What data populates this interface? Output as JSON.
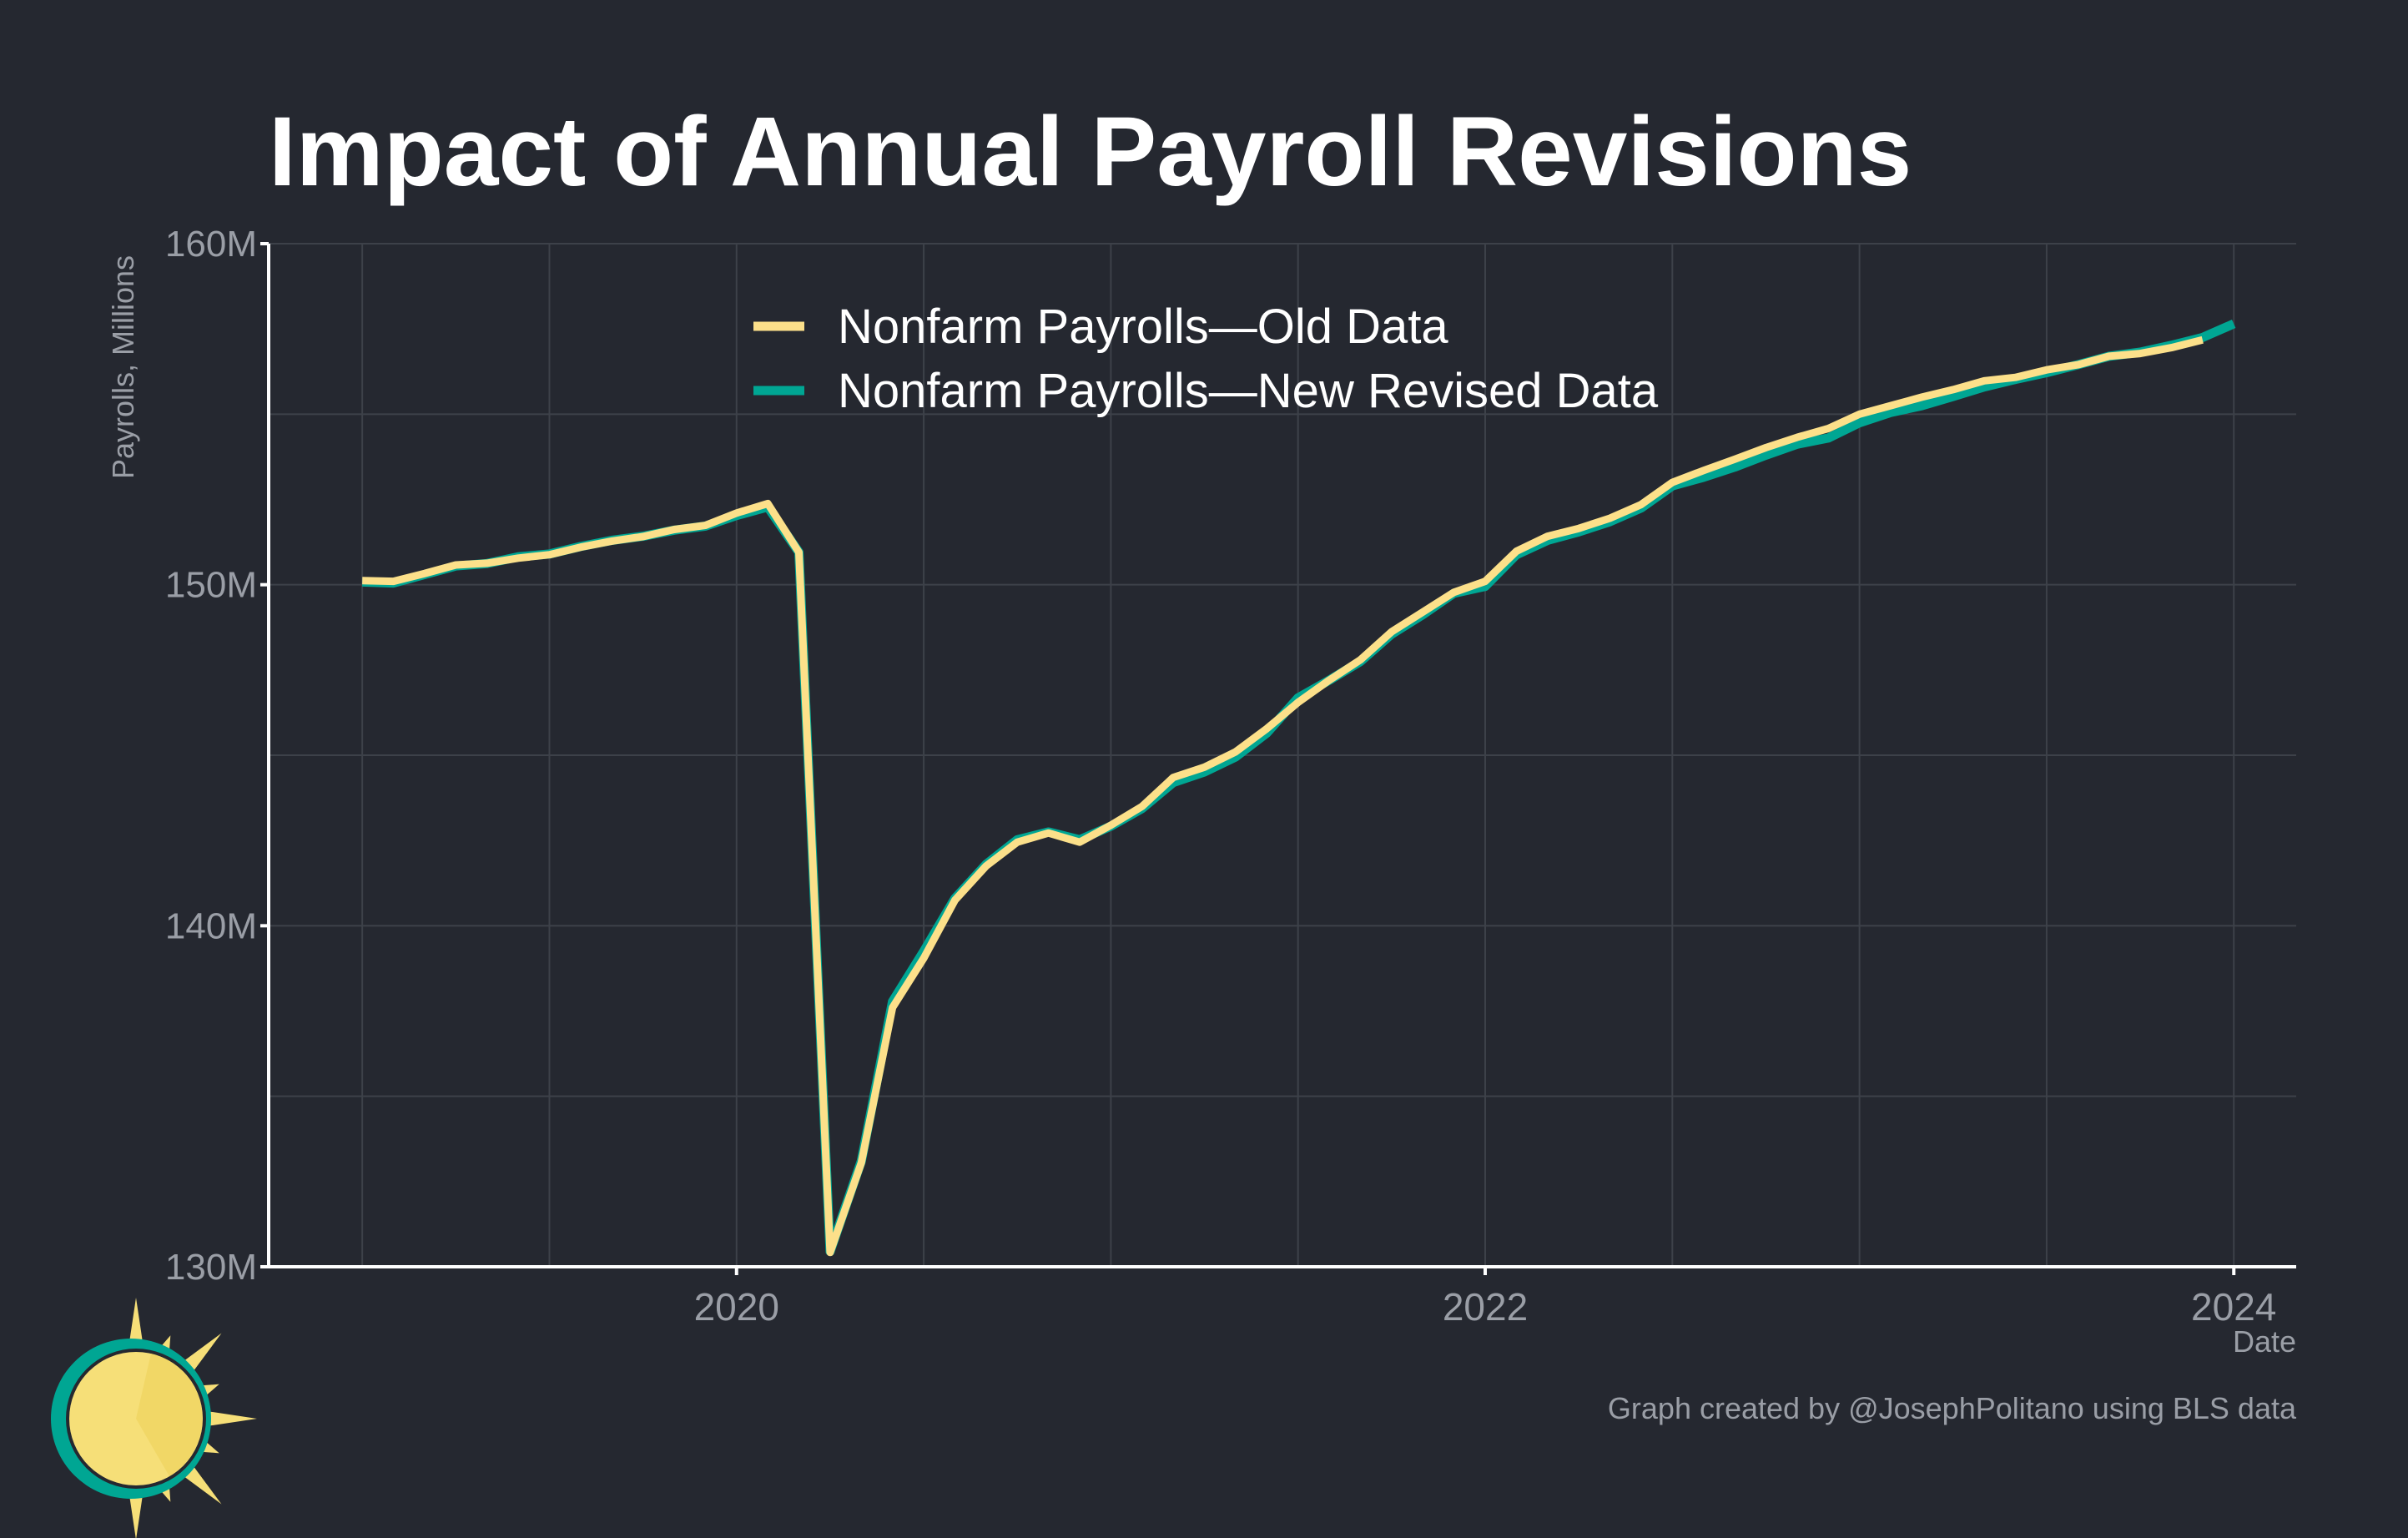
{
  "title": "Impact of Annual Payroll Revisions",
  "credit": "Graph created by @JosephPolitano using BLS data",
  "colors": {
    "background": "#252830",
    "grid": "#3d4149",
    "axis": "#ffffff",
    "tick_text": "#9a9ea6",
    "title_text": "#ffffff",
    "legend_text": "#ffffff",
    "old_series": "#fce08a",
    "new_series": "#00a693",
    "logo_sun": "#f6df78",
    "logo_ring": "#00a693"
  },
  "chart_data": {
    "type": "line",
    "title": "Impact of Annual Payroll Revisions",
    "xlabel": "Date",
    "ylabel": "Payrolls, Millions",
    "x_unit": "month",
    "xlim": [
      "2018-10",
      "2024-03"
    ],
    "ylim": [
      130,
      160
    ],
    "x_ticks": [
      "2020",
      "2022",
      "2024"
    ],
    "y_ticks": [
      "130M",
      "140M",
      "150M",
      "160M"
    ],
    "y_tick_values": [
      130,
      140,
      150,
      160
    ],
    "y_gridlines": [
      130,
      135,
      140,
      145,
      150,
      155,
      160
    ],
    "grid": true,
    "legend_position": "top-center",
    "series": [
      {
        "name": "Nonfarm Payrolls—New Revised Data",
        "color": "#00a693",
        "x": [
          "2019-01",
          "2019-02",
          "2019-03",
          "2019-04",
          "2019-05",
          "2019-06",
          "2019-07",
          "2019-08",
          "2019-09",
          "2019-10",
          "2019-11",
          "2019-12",
          "2020-01",
          "2020-02",
          "2020-03",
          "2020-04",
          "2020-05",
          "2020-06",
          "2020-07",
          "2020-08",
          "2020-09",
          "2020-10",
          "2020-11",
          "2020-12",
          "2021-01",
          "2021-02",
          "2021-03",
          "2021-04",
          "2021-05",
          "2021-06",
          "2021-07",
          "2021-08",
          "2021-09",
          "2021-10",
          "2021-11",
          "2021-12",
          "2022-01",
          "2022-02",
          "2022-03",
          "2022-04",
          "2022-05",
          "2022-06",
          "2022-07",
          "2022-08",
          "2022-09",
          "2022-10",
          "2022-11",
          "2022-12",
          "2023-01",
          "2023-02",
          "2023-03",
          "2023-04",
          "2023-05",
          "2023-06",
          "2023-07",
          "2023-08",
          "2023-09",
          "2023-10",
          "2023-11",
          "2023-12",
          "2024-01"
        ],
        "values": [
          150.08,
          150.05,
          150.3,
          150.55,
          150.62,
          150.82,
          150.9,
          151.12,
          151.3,
          151.42,
          151.6,
          151.72,
          152.03,
          152.28,
          150.95,
          130.45,
          133.1,
          137.78,
          139.25,
          140.8,
          141.8,
          142.52,
          142.75,
          142.52,
          142.92,
          143.44,
          144.2,
          144.51,
          144.95,
          145.65,
          146.68,
          147.2,
          147.75,
          148.55,
          149.12,
          149.75,
          149.95,
          150.88,
          151.3,
          151.55,
          151.85,
          152.25,
          152.9,
          153.15,
          153.45,
          153.8,
          154.12,
          154.3,
          154.75,
          155.05,
          155.25,
          155.52,
          155.8,
          156.02,
          156.22,
          156.45,
          156.7,
          156.82,
          157.02,
          157.25,
          157.65
        ]
      },
      {
        "name": "Nonfarm Payrolls—Old Data",
        "color": "#fce08a",
        "x": [
          "2019-01",
          "2019-02",
          "2019-03",
          "2019-04",
          "2019-05",
          "2019-06",
          "2019-07",
          "2019-08",
          "2019-09",
          "2019-10",
          "2019-11",
          "2019-12",
          "2020-01",
          "2020-02",
          "2020-03",
          "2020-04",
          "2020-05",
          "2020-06",
          "2020-07",
          "2020-08",
          "2020-09",
          "2020-10",
          "2020-11",
          "2020-12",
          "2021-01",
          "2021-02",
          "2021-03",
          "2021-04",
          "2021-05",
          "2021-06",
          "2021-07",
          "2021-08",
          "2021-09",
          "2021-10",
          "2021-11",
          "2021-12",
          "2022-01",
          "2022-02",
          "2022-03",
          "2022-04",
          "2022-05",
          "2022-06",
          "2022-07",
          "2022-08",
          "2022-09",
          "2022-10",
          "2022-11",
          "2022-12",
          "2023-01",
          "2023-02",
          "2023-03",
          "2023-04",
          "2023-05",
          "2023-06",
          "2023-07",
          "2023-08",
          "2023-09",
          "2023-10",
          "2023-11",
          "2023-12"
        ],
        "values": [
          150.12,
          150.1,
          150.33,
          150.58,
          150.63,
          150.78,
          150.88,
          151.1,
          151.28,
          151.41,
          151.62,
          151.74,
          152.1,
          152.38,
          150.95,
          130.42,
          133.05,
          137.6,
          139.05,
          140.75,
          141.75,
          142.45,
          142.72,
          142.45,
          142.95,
          143.5,
          144.35,
          144.65,
          145.1,
          145.78,
          146.55,
          147.2,
          147.8,
          148.62,
          149.2,
          149.78,
          150.1,
          150.98,
          151.42,
          151.65,
          151.95,
          152.35,
          153.0,
          153.35,
          153.68,
          154.02,
          154.32,
          154.58,
          155.0,
          155.25,
          155.5,
          155.72,
          155.98,
          156.08,
          156.3,
          156.45,
          156.7,
          156.78,
          156.95,
          157.18
        ]
      }
    ]
  }
}
